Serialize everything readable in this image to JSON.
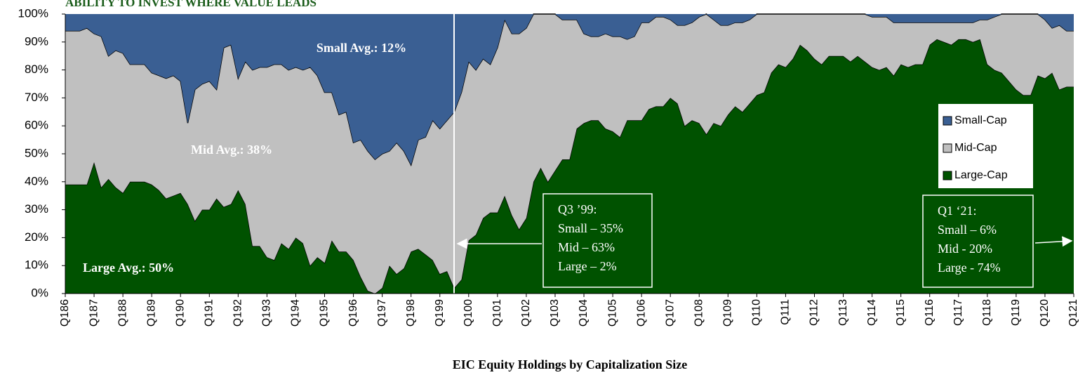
{
  "chart_data": {
    "type": "stacked_area",
    "title": "ABILITY TO INVEST WHERE VALUE LEADS",
    "x_label": "EIC Equity Holdings by Capitalization Size",
    "categories": [
      "Q186",
      null,
      null,
      null,
      "Q187",
      null,
      null,
      null,
      "Q188",
      null,
      null,
      null,
      "Q189",
      null,
      null,
      null,
      "Q190",
      null,
      null,
      null,
      "Q191",
      null,
      null,
      null,
      "Q192",
      null,
      null,
      null,
      "Q193",
      null,
      null,
      null,
      "Q194",
      null,
      null,
      null,
      "Q195",
      null,
      null,
      null,
      "Q196",
      null,
      null,
      null,
      "Q197",
      null,
      null,
      null,
      "Q198",
      null,
      null,
      null,
      "Q199",
      null,
      null,
      null,
      "Q100",
      null,
      null,
      null,
      "Q101",
      null,
      null,
      null,
      "Q102",
      null,
      null,
      null,
      "Q103",
      null,
      null,
      null,
      "Q104",
      null,
      null,
      null,
      "Q105",
      null,
      null,
      null,
      "Q106",
      null,
      null,
      null,
      "Q107",
      null,
      null,
      null,
      "Q108",
      null,
      null,
      null,
      "Q109",
      null,
      null,
      null,
      "Q110",
      null,
      null,
      null,
      "Q111",
      null,
      null,
      null,
      "Q112",
      null,
      null,
      null,
      "Q113",
      null,
      null,
      null,
      "Q114",
      null,
      null,
      null,
      "Q115",
      null,
      null,
      null,
      "Q116",
      null,
      null,
      null,
      "Q117",
      null,
      null,
      null,
      "Q118",
      null,
      null,
      null,
      "Q119",
      null,
      null,
      null,
      "Q120",
      null,
      null,
      null,
      "Q121"
    ],
    "series": [
      {
        "name": "Large-Cap",
        "color": "#005200",
        "values": [
          39,
          39,
          39,
          39,
          47,
          38,
          41,
          38,
          36,
          40,
          40,
          40,
          39,
          37,
          34,
          35,
          36,
          32,
          26,
          30,
          30,
          34,
          31,
          32,
          37,
          32,
          17,
          17,
          13,
          12,
          18,
          16,
          20,
          18,
          10,
          13,
          11,
          19,
          15,
          15,
          12,
          6,
          1,
          0,
          2,
          10,
          7,
          9,
          15,
          16,
          14,
          12,
          7,
          8,
          2,
          5,
          19,
          21,
          27,
          29,
          29,
          35,
          28,
          23,
          27,
          40,
          45,
          40,
          44,
          48,
          48,
          59,
          61,
          62,
          62,
          59,
          58,
          56,
          62,
          62,
          62,
          66,
          67,
          67,
          70,
          68,
          60,
          62,
          61,
          57,
          61,
          60,
          64,
          67,
          65,
          68,
          71,
          72,
          79,
          82,
          81,
          84,
          89,
          87,
          84,
          82,
          85,
          85,
          85,
          83,
          85,
          83,
          81,
          80,
          81,
          78,
          82,
          81,
          82,
          82,
          89,
          91,
          90,
          89,
          91,
          91,
          90,
          91,
          82,
          80,
          79,
          76,
          73,
          71,
          71,
          78,
          77,
          79,
          73,
          74,
          74
        ]
      },
      {
        "name": "Mid-Cap",
        "color": "#c0c0c0",
        "values": [
          55,
          55,
          55,
          56,
          46,
          54,
          44,
          49,
          50,
          42,
          42,
          42,
          40,
          41,
          43,
          43,
          40,
          29,
          47,
          45,
          46,
          39,
          57,
          57,
          40,
          51,
          63,
          64,
          68,
          70,
          64,
          64,
          61,
          62,
          71,
          65,
          61,
          53,
          49,
          50,
          42,
          49,
          50,
          48,
          48,
          41,
          47,
          42,
          31,
          39,
          42,
          50,
          52,
          54,
          63,
          67,
          64,
          59,
          57,
          53,
          59,
          63,
          65,
          70,
          68,
          60,
          55,
          60,
          56,
          50,
          50,
          39,
          32,
          30,
          30,
          34,
          34,
          36,
          29,
          30,
          35,
          31,
          32,
          32,
          28,
          28,
          36,
          35,
          38,
          43,
          37,
          36,
          32,
          30,
          32,
          30,
          29,
          28,
          21,
          18,
          19,
          16,
          11,
          13,
          16,
          18,
          15,
          15,
          15,
          17,
          15,
          17,
          18,
          19,
          18,
          19,
          15,
          16,
          15,
          15,
          8,
          6,
          7,
          8,
          6,
          6,
          7,
          7,
          16,
          19,
          21,
          24,
          27,
          29,
          29,
          22,
          21,
          16,
          23,
          20,
          20
        ]
      },
      {
        "name": "Small-Cap",
        "color": "#3a5f93",
        "values": [
          6,
          6,
          6,
          5,
          7,
          8,
          15,
          13,
          14,
          18,
          18,
          18,
          21,
          22,
          23,
          22,
          24,
          39,
          27,
          25,
          24,
          27,
          12,
          11,
          23,
          17,
          20,
          19,
          19,
          18,
          18,
          20,
          19,
          20,
          19,
          22,
          28,
          28,
          36,
          35,
          46,
          45,
          49,
          52,
          50,
          49,
          46,
          49,
          54,
          45,
          44,
          38,
          41,
          38,
          35,
          28,
          17,
          20,
          16,
          18,
          12,
          2,
          7,
          7,
          5,
          0,
          0,
          0,
          0,
          2,
          2,
          2,
          7,
          8,
          8,
          7,
          8,
          8,
          9,
          8,
          3,
          3,
          1,
          1,
          2,
          4,
          4,
          3,
          1,
          0,
          2,
          4,
          4,
          3,
          3,
          2,
          0,
          0,
          0,
          0,
          0,
          0,
          0,
          0,
          0,
          0,
          0,
          0,
          0,
          0,
          0,
          0,
          1,
          1,
          1,
          3,
          3,
          3,
          3,
          3,
          3,
          3,
          3,
          3,
          3,
          3,
          3,
          2,
          2,
          1,
          0,
          0,
          0,
          0,
          0,
          0,
          2,
          5,
          4,
          6,
          6
        ]
      }
    ],
    "ylim": [
      0,
      100
    ],
    "yticks": [
      {
        "value": 0,
        "label": "0%"
      },
      {
        "value": 10,
        "label": "10%"
      },
      {
        "value": 20,
        "label": "20%"
      },
      {
        "value": 30,
        "label": "30%"
      },
      {
        "value": 40,
        "label": "40%"
      },
      {
        "value": 50,
        "label": "50%"
      },
      {
        "value": 60,
        "label": "60%"
      },
      {
        "value": 70,
        "label": "70%"
      },
      {
        "value": 80,
        "label": "80%"
      },
      {
        "value": 90,
        "label": "90%"
      },
      {
        "value": 100,
        "label": "100%"
      }
    ],
    "legend": "right",
    "annotations": {
      "small_avg": "Small Avg.: 12%",
      "mid_avg": "Mid Avg.: 38%",
      "large_avg": "Large Avg.: 50%"
    },
    "callouts": [
      {
        "lines": [
          "Q3 ’99:",
          "Small – 35%",
          "Mid – 63%",
          "Large – 2%"
        ]
      },
      {
        "lines": [
          "Q1 ‘21:",
          "Small – 6%",
          "Mid - 20%",
          "Large - 74%"
        ]
      }
    ]
  }
}
